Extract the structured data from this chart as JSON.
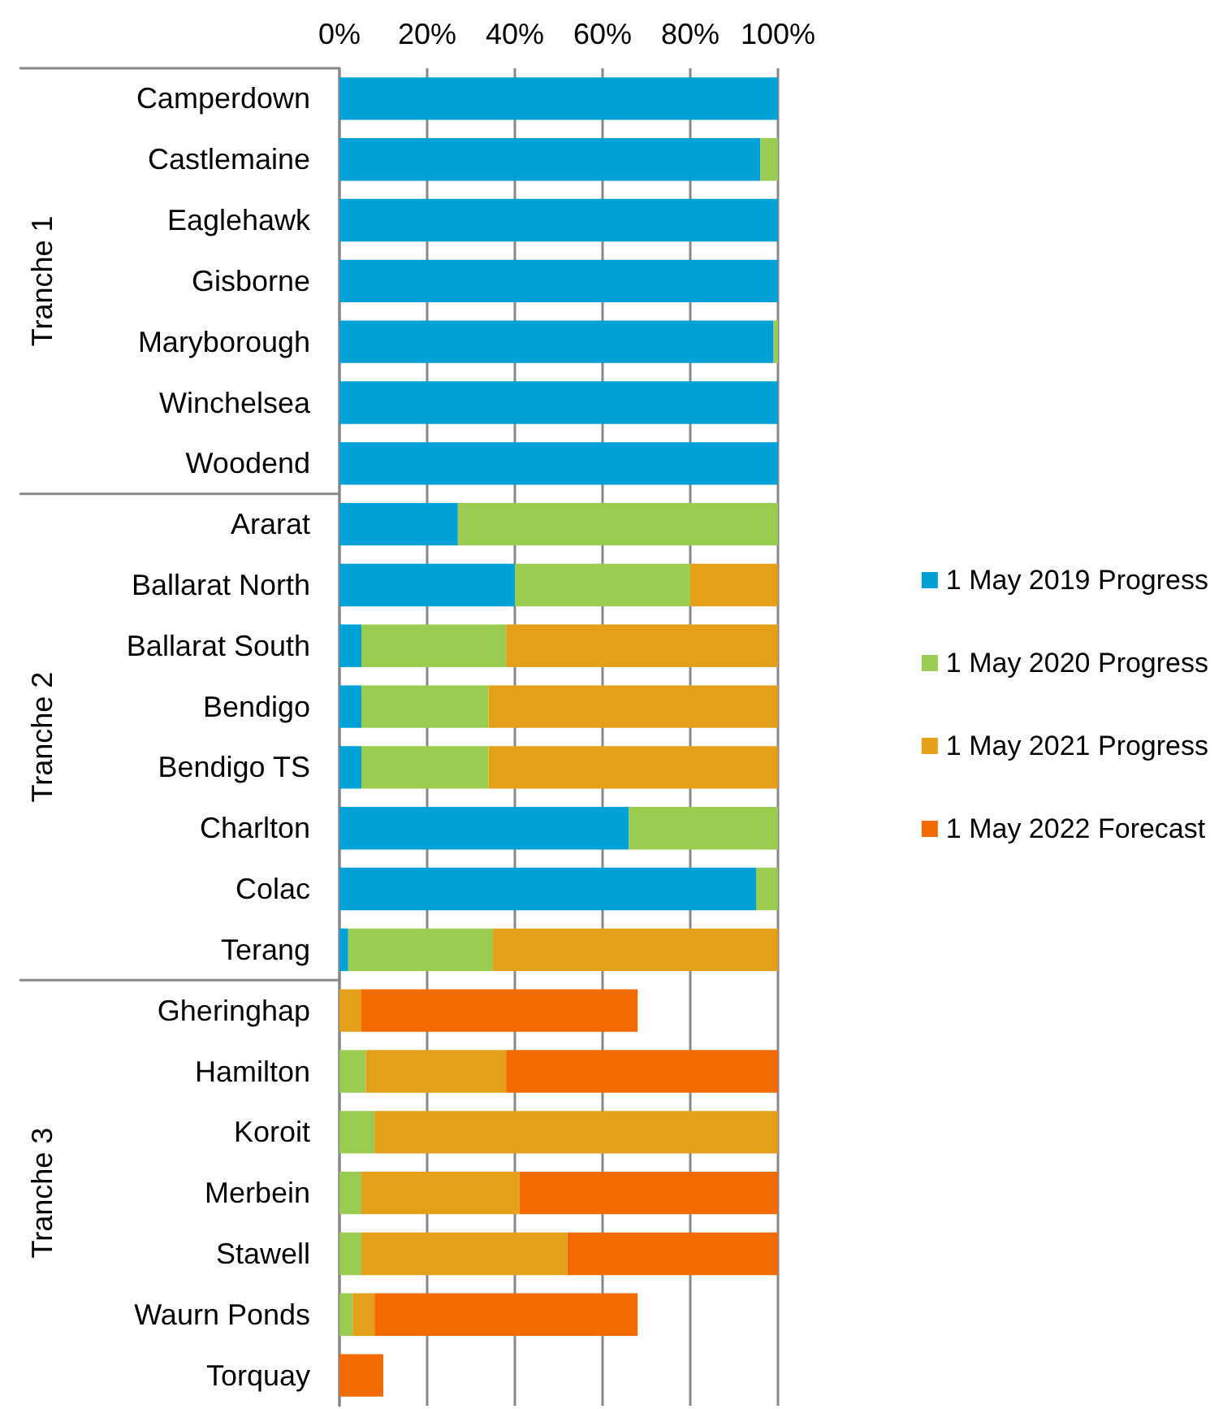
{
  "chart_data": {
    "type": "bar",
    "orientation": "horizontal",
    "stacked": true,
    "categories": [
      "Camperdown",
      "Castlemaine",
      "Eaglehawk",
      "Gisborne",
      "Maryborough",
      "Winchelsea",
      "Woodend",
      "Ararat",
      "Ballarat North",
      "Ballarat South",
      "Bendigo",
      "Bendigo TS",
      "Charlton",
      "Colac",
      "Terang",
      "Gheringhap",
      "Hamilton",
      "Koroit",
      "Merbein",
      "Stawell",
      "Waurn Ponds",
      "Torquay"
    ],
    "series": [
      {
        "name": "1 May 2019 Progress",
        "color": "#00a1d6",
        "values": [
          100,
          96,
          100,
          100,
          99,
          100,
          100,
          27,
          40,
          5,
          5,
          5,
          66,
          95,
          2,
          null,
          null,
          null,
          null,
          null,
          null,
          null
        ]
      },
      {
        "name": "1 May 2020 Progress",
        "color": "#99cc50",
        "values": [
          null,
          4,
          null,
          null,
          1,
          null,
          null,
          73,
          40,
          33,
          29,
          29,
          34,
          5,
          33,
          null,
          6,
          8,
          5,
          5,
          3,
          null
        ]
      },
      {
        "name": "1 May 2021 Progress",
        "color": "#e3a018",
        "values": [
          null,
          null,
          null,
          null,
          null,
          null,
          null,
          null,
          20,
          62,
          66,
          66,
          null,
          null,
          65,
          5,
          32,
          92,
          36,
          47,
          5,
          null
        ]
      },
      {
        "name": "1 May 2022 Forecast",
        "color": "#f26b00",
        "values": [
          null,
          null,
          null,
          null,
          null,
          null,
          null,
          null,
          null,
          null,
          null,
          null,
          null,
          null,
          null,
          63,
          62,
          null,
          59,
          48,
          60,
          10
        ]
      }
    ],
    "xlim": [
      0,
      100
    ],
    "xticks": [
      {
        "value": 0,
        "label": "0%"
      },
      {
        "value": 20,
        "label": "20%"
      },
      {
        "value": 40,
        "label": "40%"
      },
      {
        "value": 60,
        "label": "60%"
      },
      {
        "value": 80,
        "label": "80%"
      },
      {
        "value": 100,
        "label": "100%"
      }
    ],
    "grid": "x",
    "legend": "right",
    "annotations": [
      "Tranche 1",
      "Tranche 2",
      "Tranche 3"
    ]
  }
}
